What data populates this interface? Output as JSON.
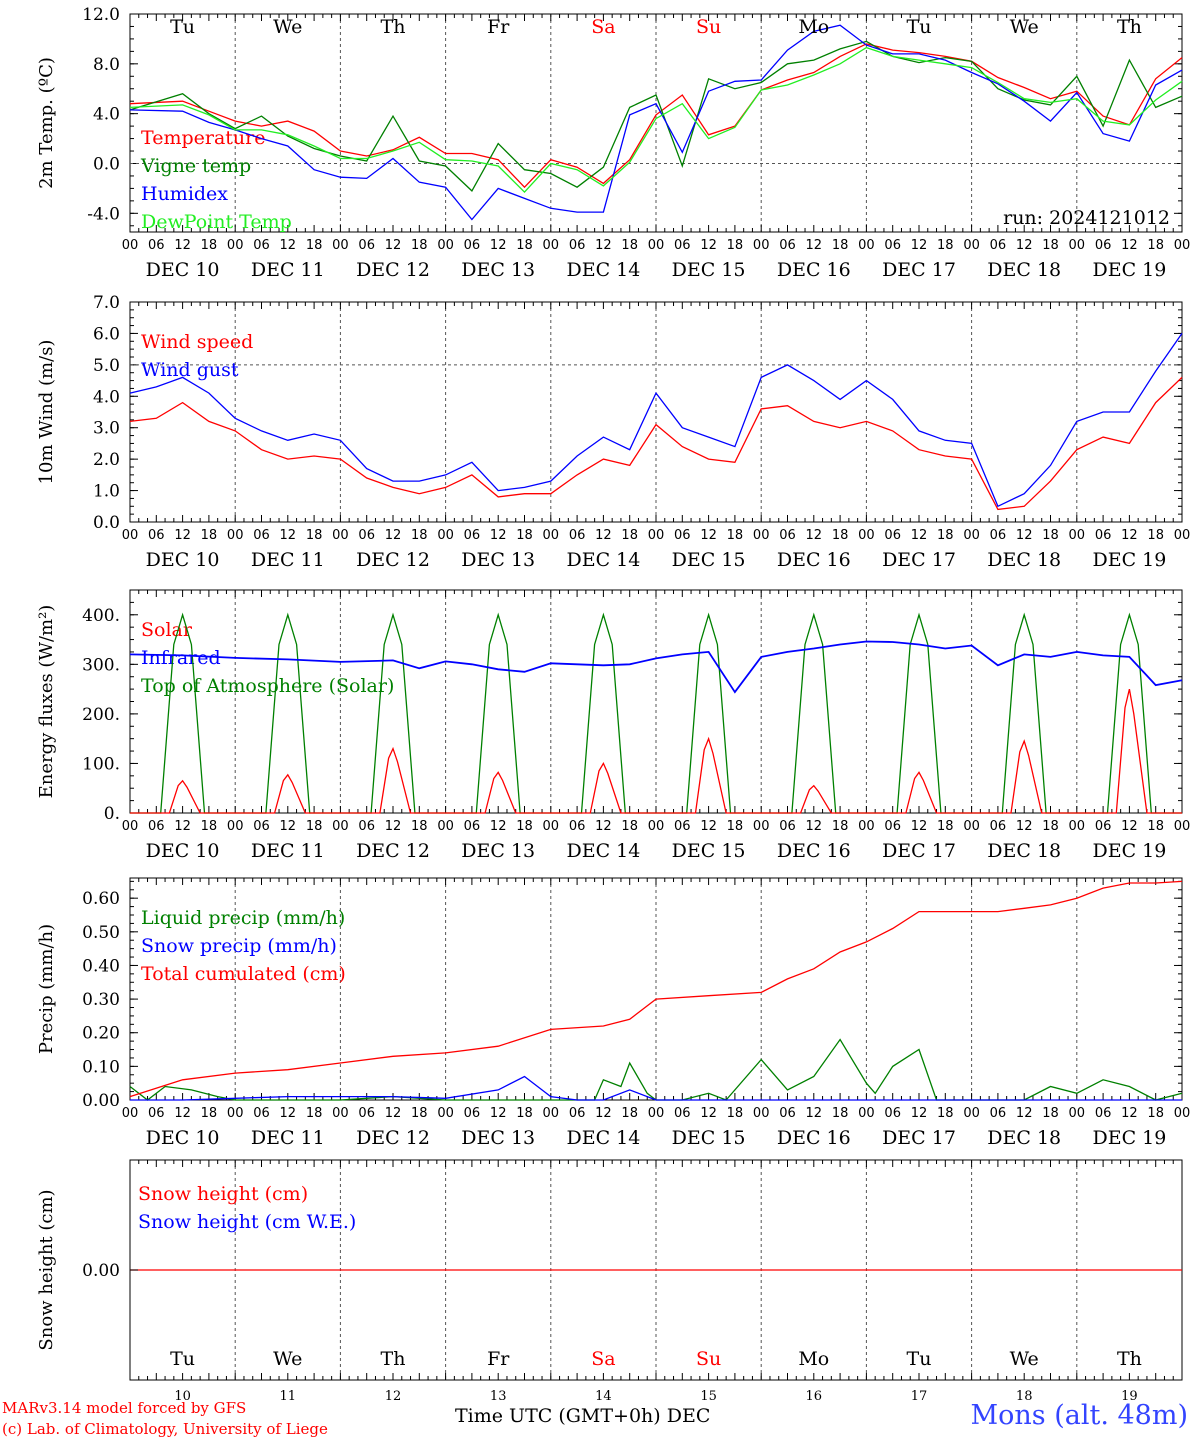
{
  "run": "run: 2024121012",
  "footer": {
    "credit_model": "MARv3.14 model forced by GFS",
    "credit_lab": "(c) Lab. of Climatology, University of Liege",
    "x_title": "Time UTC (GMT+0h) DEC",
    "station": "Mons (alt. 48m)"
  },
  "days": {
    "weekdays": [
      "Tu",
      "We",
      "Th",
      "Fr",
      "Sa",
      "Su",
      "Mo",
      "Tu",
      "We",
      "Th"
    ],
    "weekend_idx": [
      4,
      5
    ],
    "dates": [
      "DEC 10",
      "DEC 11",
      "DEC 12",
      "DEC 13",
      "DEC 14",
      "DEC 15",
      "DEC 16",
      "DEC 17",
      "DEC 18",
      "DEC 19"
    ],
    "numbers": [
      "10",
      "11",
      "12",
      "13",
      "14",
      "15",
      "16",
      "17",
      "18",
      "19"
    ],
    "hour_ticks": [
      "00",
      "06",
      "12",
      "18"
    ],
    "end_tick": "00"
  },
  "colors": {
    "red": "#ff0000",
    "green": "#008000",
    "blue": "#0000ff",
    "lightgreen": "#22ee22",
    "weekend": "#ff0000"
  },
  "chart_data": [
    {
      "id": "temp",
      "type": "line",
      "ylabel": "2m Temp. (ºC)",
      "ylim": [
        -5.5,
        12.0
      ],
      "yticks": [
        12,
        8,
        4,
        0,
        -4
      ],
      "ytick_labels": [
        "12.0",
        "8.0",
        "4.0",
        "0.0",
        "-4.0"
      ],
      "ref_line": 0,
      "x_unit": "hours since DEC 10 00 UTC",
      "xlim": [
        0,
        240
      ],
      "series": [
        {
          "name": "Temperature",
          "color": "red",
          "x": [
            0,
            12,
            18,
            24,
            30,
            36,
            42,
            48,
            54,
            60,
            66,
            72,
            78,
            84,
            90,
            96,
            102,
            108,
            114,
            120,
            126,
            132,
            138,
            144,
            150,
            156,
            162,
            168,
            174,
            180,
            186,
            192,
            198,
            204,
            210,
            216,
            222,
            228,
            234,
            240
          ],
          "y": [
            4.8,
            5.0,
            4.2,
            3.4,
            3.0,
            3.4,
            2.6,
            1.0,
            0.6,
            1.1,
            2.1,
            0.8,
            0.8,
            0.3,
            -1.9,
            0.3,
            -0.3,
            -1.6,
            0.3,
            3.9,
            5.5,
            2.3,
            3.0,
            5.9,
            6.7,
            7.3,
            8.6,
            9.6,
            9.1,
            8.9,
            8.6,
            8.2,
            6.9,
            6.1,
            5.2,
            5.8,
            3.8,
            3.1,
            6.8,
            8.5
          ]
        },
        {
          "name": "Vigne temp",
          "color": "green",
          "x": [
            0,
            12,
            18,
            24,
            30,
            36,
            42,
            48,
            54,
            60,
            66,
            72,
            78,
            84,
            90,
            96,
            102,
            108,
            114,
            120,
            126,
            132,
            138,
            144,
            150,
            156,
            162,
            168,
            174,
            180,
            186,
            192,
            198,
            204,
            210,
            216,
            222,
            228,
            234,
            240
          ],
          "y": [
            4.3,
            5.6,
            4.0,
            2.8,
            3.8,
            2.2,
            1.2,
            0.6,
            0.2,
            3.8,
            0.2,
            -0.2,
            -2.2,
            1.6,
            -0.5,
            -0.8,
            -1.9,
            -0.3,
            4.5,
            5.5,
            -0.2,
            6.8,
            6.0,
            6.5,
            8.0,
            8.3,
            9.2,
            9.8,
            8.6,
            8.1,
            8.5,
            8.2,
            6.0,
            5.1,
            4.7,
            7.0,
            3.0,
            8.3,
            4.5,
            5.4
          ]
        },
        {
          "name": "Humidex",
          "color": "blue",
          "x": [
            0,
            12,
            18,
            24,
            30,
            36,
            42,
            48,
            54,
            60,
            66,
            72,
            78,
            84,
            90,
            96,
            102,
            108,
            114,
            120,
            126,
            132,
            138,
            144,
            150,
            156,
            162,
            168,
            174,
            180,
            186,
            192,
            198,
            204,
            210,
            216,
            222,
            228,
            234,
            240
          ],
          "y": [
            4.3,
            4.2,
            3.3,
            2.7,
            2.0,
            1.4,
            -0.5,
            -1.1,
            -1.2,
            0.4,
            -1.5,
            -1.9,
            -4.5,
            -2.0,
            -2.8,
            -3.6,
            -3.9,
            -3.9,
            3.9,
            4.8,
            0.9,
            5.8,
            6.6,
            6.7,
            9.1,
            10.6,
            11.1,
            9.5,
            8.8,
            8.8,
            8.3,
            7.3,
            6.4,
            5.0,
            3.4,
            5.7,
            2.4,
            1.8,
            6.3,
            7.5
          ]
        },
        {
          "name": "DewPoint Temp",
          "color": "lightgreen",
          "x": [
            0,
            12,
            18,
            24,
            30,
            36,
            42,
            48,
            54,
            60,
            66,
            72,
            78,
            84,
            90,
            96,
            102,
            108,
            114,
            120,
            126,
            132,
            138,
            144,
            150,
            156,
            162,
            168,
            174,
            180,
            186,
            192,
            198,
            204,
            210,
            216,
            222,
            228,
            234,
            240
          ],
          "y": [
            4.5,
            4.7,
            3.9,
            2.7,
            2.7,
            2.3,
            1.4,
            0.4,
            0.4,
            1.0,
            1.7,
            0.3,
            0.2,
            -0.2,
            -2.3,
            0.0,
            -0.5,
            -1.8,
            0.1,
            3.6,
            4.8,
            2.0,
            2.9,
            5.9,
            6.3,
            7.1,
            8.0,
            9.3,
            8.6,
            8.3,
            8.0,
            7.7,
            6.5,
            5.2,
            4.9,
            5.2,
            3.4,
            3.1,
            5.1,
            6.6
          ]
        }
      ]
    },
    {
      "id": "wind",
      "type": "line",
      "ylabel": "10m Wind (m/s)",
      "ylim": [
        0,
        7.0
      ],
      "yticks": [
        7,
        6,
        5,
        4,
        3,
        2,
        1,
        0
      ],
      "ytick_labels": [
        "7.0",
        "6.0",
        "5.0",
        "4.0",
        "3.0",
        "2.0",
        "1.0",
        "0.0"
      ],
      "ref_line": 5,
      "xlim": [
        0,
        240
      ],
      "series": [
        {
          "name": "Wind speed",
          "color": "red",
          "x": [
            0,
            6,
            12,
            18,
            24,
            30,
            36,
            42,
            48,
            54,
            60,
            66,
            72,
            78,
            84,
            90,
            96,
            102,
            108,
            114,
            120,
            126,
            132,
            138,
            144,
            150,
            156,
            162,
            168,
            174,
            180,
            186,
            192,
            198,
            204,
            210,
            216,
            222,
            228,
            234,
            240
          ],
          "y": [
            3.2,
            3.3,
            3.8,
            3.2,
            2.9,
            2.3,
            2.0,
            2.1,
            2.0,
            1.4,
            1.1,
            0.9,
            1.1,
            1.5,
            0.8,
            0.9,
            0.9,
            1.5,
            2.0,
            1.8,
            3.1,
            2.4,
            2.0,
            1.9,
            3.6,
            3.7,
            3.2,
            3.0,
            3.2,
            2.9,
            2.3,
            2.1,
            2.0,
            0.4,
            0.5,
            1.3,
            2.3,
            2.7,
            2.5,
            3.8,
            4.6
          ]
        },
        {
          "name": "Wind gust",
          "color": "blue",
          "x": [
            0,
            6,
            12,
            18,
            24,
            30,
            36,
            42,
            48,
            54,
            60,
            66,
            72,
            78,
            84,
            90,
            96,
            102,
            108,
            114,
            120,
            126,
            132,
            138,
            144,
            150,
            156,
            162,
            168,
            174,
            180,
            186,
            192,
            198,
            204,
            210,
            216,
            222,
            228,
            234,
            240
          ],
          "y": [
            4.1,
            4.3,
            4.6,
            4.1,
            3.3,
            2.9,
            2.6,
            2.8,
            2.6,
            1.7,
            1.3,
            1.3,
            1.5,
            1.9,
            1.0,
            1.1,
            1.3,
            2.1,
            2.7,
            2.3,
            4.1,
            3.0,
            2.7,
            2.4,
            4.6,
            5.0,
            4.5,
            3.9,
            4.5,
            3.9,
            2.9,
            2.6,
            2.5,
            0.5,
            0.9,
            1.8,
            3.2,
            3.5,
            3.5,
            4.8,
            6.0
          ]
        }
      ]
    },
    {
      "id": "energy",
      "type": "line",
      "ylabel": "Energy fluxes (W/m²)",
      "ylim": [
        0,
        450
      ],
      "yticks": [
        400,
        300,
        200,
        100,
        0
      ],
      "ytick_labels": [
        "400.",
        "300.",
        "200.",
        "100.",
        "0."
      ],
      "xlim": [
        0,
        240
      ],
      "solar_peaks": [
        65,
        77,
        130,
        82,
        100,
        150,
        55,
        82,
        145,
        250
      ],
      "toa_peak": 400,
      "infrared": {
        "x": [
          0,
          12,
          24,
          36,
          48,
          60,
          66,
          72,
          78,
          84,
          90,
          96,
          108,
          114,
          120,
          126,
          132,
          138,
          144,
          150,
          156,
          162,
          168,
          174,
          180,
          186,
          192,
          198,
          204,
          210,
          216,
          222,
          228,
          234,
          240
        ],
        "y": [
          320,
          318,
          313,
          310,
          305,
          308,
          292,
          306,
          300,
          290,
          285,
          302,
          298,
          300,
          312,
          320,
          325,
          244,
          315,
          325,
          332,
          340,
          346,
          345,
          340,
          332,
          338,
          298,
          320,
          315,
          325,
          318,
          315,
          258,
          268
        ]
      },
      "series": [
        {
          "name": "Solar",
          "color": "red"
        },
        {
          "name": "Infrared",
          "color": "blue"
        },
        {
          "name": "Top of Atmosphere (Solar)",
          "color": "green"
        }
      ]
    },
    {
      "id": "precip",
      "type": "line",
      "ylabel": "Precip (mm/h)",
      "ylim": [
        0,
        0.66
      ],
      "yticks": [
        0.6,
        0.5,
        0.4,
        0.3,
        0.2,
        0.1,
        0
      ],
      "ytick_labels": [
        "0.60",
        "0.50",
        "0.40",
        "0.30",
        "0.20",
        "0.10",
        "0.00"
      ],
      "xlim": [
        0,
        240
      ],
      "series": [
        {
          "name": "Liquid precip (mm/h)",
          "color": "green",
          "x": [
            0,
            4,
            8,
            14,
            20,
            24,
            36,
            48,
            60,
            72,
            84,
            96,
            106,
            108,
            112,
            114,
            118,
            120,
            126,
            132,
            136,
            144,
            150,
            156,
            162,
            168,
            170,
            174,
            180,
            184,
            192,
            198,
            204,
            210,
            216,
            222,
            228,
            234,
            240
          ],
          "y": [
            0.04,
            0.0,
            0.04,
            0.03,
            0.01,
            0.0,
            0.0,
            0.0,
            0.01,
            0.0,
            0.0,
            0.0,
            0.0,
            0.06,
            0.04,
            0.11,
            0.02,
            0.0,
            0.0,
            0.02,
            0.0,
            0.12,
            0.03,
            0.07,
            0.18,
            0.05,
            0.02,
            0.1,
            0.15,
            0.0,
            0.0,
            0.0,
            0.0,
            0.04,
            0.02,
            0.06,
            0.04,
            0.0,
            0.02
          ]
        },
        {
          "name": "Snow precip (mm/h)",
          "color": "blue",
          "x": [
            0,
            12,
            24,
            36,
            48,
            60,
            72,
            84,
            90,
            96,
            102,
            108,
            114,
            120,
            132,
            144,
            240
          ],
          "y": [
            0.0,
            0.0,
            0.005,
            0.01,
            0.01,
            0.01,
            0.005,
            0.03,
            0.07,
            0.01,
            0.0,
            0.0,
            0.03,
            0.0,
            0.0,
            0.0,
            0.0
          ]
        },
        {
          "name": "Total cumulated (cm)",
          "color": "red",
          "x": [
            0,
            12,
            24,
            36,
            48,
            60,
            72,
            84,
            96,
            108,
            114,
            120,
            132,
            144,
            150,
            156,
            162,
            168,
            174,
            180,
            186,
            192,
            198,
            204,
            210,
            216,
            222,
            228,
            234,
            240
          ],
          "y": [
            0.01,
            0.06,
            0.08,
            0.09,
            0.11,
            0.13,
            0.14,
            0.16,
            0.21,
            0.22,
            0.24,
            0.3,
            0.31,
            0.32,
            0.36,
            0.39,
            0.44,
            0.47,
            0.51,
            0.56,
            0.56,
            0.56,
            0.56,
            0.57,
            0.58,
            0.6,
            0.63,
            0.645,
            0.645,
            0.65
          ]
        }
      ]
    },
    {
      "id": "snow",
      "type": "line",
      "ylabel": "Snow height (cm)",
      "ytick_labels": [
        "0.00"
      ],
      "xlim": [
        0,
        240
      ],
      "series": [
        {
          "name": "Snow height (cm)",
          "color": "red",
          "x": [
            0,
            240
          ],
          "y": [
            0,
            0
          ]
        },
        {
          "name": "Snow height (cm W.E.)",
          "color": "blue",
          "x": [
            0,
            240
          ],
          "y": [
            0,
            0
          ]
        }
      ]
    }
  ]
}
